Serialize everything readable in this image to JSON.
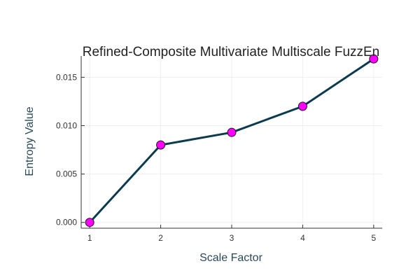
{
  "chart_data": {
    "type": "line",
    "title": "Refined-Composite Multivariate Multiscale FuzzEn",
    "xlabel": "Scale Factor",
    "ylabel": "Entropy Value",
    "x": [
      1,
      2,
      3,
      4,
      5
    ],
    "series": [
      {
        "values": [
          0.0,
          0.008,
          0.0093,
          0.012,
          0.0169
        ]
      }
    ],
    "xticks": [
      "1",
      "2",
      "3",
      "4",
      "5"
    ],
    "yticks": [
      "0.000",
      "0.005",
      "0.010",
      "0.015"
    ],
    "ytick_values": [
      0.0,
      0.005,
      0.01,
      0.015
    ],
    "xlim": [
      0.88,
      5.12
    ],
    "ylim": [
      -0.0006,
      0.0172
    ],
    "grid": true,
    "legend": "none",
    "colors": {
      "line": "#0b3c4e",
      "marker_fill": "#ff00ff",
      "marker_edge": "#1a1a1a",
      "axis_label": "#2a4a5a",
      "grid": "#eeeeee",
      "axis": "#333333"
    }
  }
}
